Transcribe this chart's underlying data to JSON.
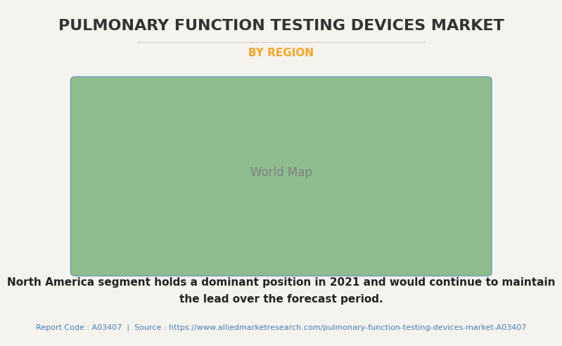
{
  "title": "PULMONARY FUNCTION TESTING DEVICES MARKET",
  "subtitle": "BY REGION",
  "description_line1": "North America segment holds a dominant position in 2021 and would continue to maintain",
  "description_line2": "the lead over the forecast period.",
  "footer": "Report Code : A03407  |  Source : https://www.alliedmarketresearch.com/pulmonary-function-testing-devices-market-A03407",
  "bg_color": "#f5f3ee",
  "title_color": "#333333",
  "subtitle_color": "#f5a623",
  "desc_color": "#222222",
  "footer_color": "#4a7eba",
  "map_color_green": "#8fbc8f",
  "map_color_white": "#ffffff",
  "map_edge_color": "#6a9fb5",
  "map_shadow_color": "#aaaaaa",
  "title_fontsize": 16,
  "subtitle_fontsize": 11,
  "desc_fontsize": 11,
  "footer_fontsize": 8,
  "underline_color": "#cccccc"
}
